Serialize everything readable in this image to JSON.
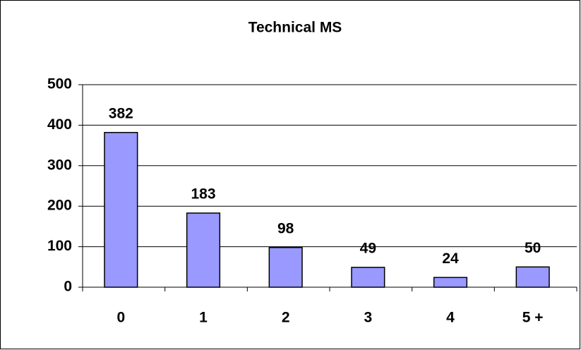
{
  "chart_data": {
    "type": "bar",
    "title": "Technical MS",
    "categories": [
      "0",
      "1",
      "2",
      "3",
      "4",
      "5 +"
    ],
    "values": [
      382,
      183,
      98,
      49,
      24,
      50
    ],
    "color": "#9999ff",
    "ylim": [
      0,
      500
    ],
    "yticks": [
      0,
      100,
      200,
      300,
      400,
      500
    ],
    "grid": true
  }
}
